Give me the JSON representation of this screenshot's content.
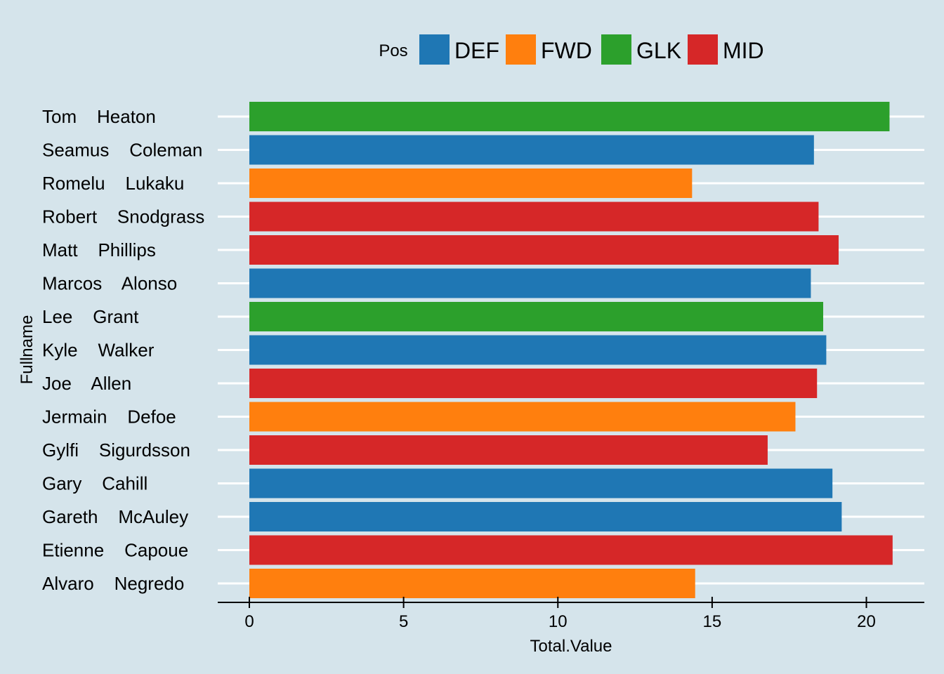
{
  "chart_data": {
    "type": "bar",
    "orientation": "horizontal",
    "xlabel": "Total.Value",
    "ylabel": "Fullname",
    "xlim": [
      -1,
      22
    ],
    "xticks": [
      "0",
      "5",
      "10",
      "15",
      "20"
    ],
    "grid": "horizontal major lines only, white",
    "legend": {
      "title": "Pos",
      "placement": "top",
      "entries": [
        {
          "label": "DEF",
          "color": "#1f77b4"
        },
        {
          "label": "FWD",
          "color": "#ff7f0e"
        },
        {
          "label": "GLK",
          "color": "#2ca02c"
        },
        {
          "label": "MID",
          "color": "#d62728"
        }
      ]
    },
    "bars": [
      {
        "name": "Tom    Heaton",
        "pos": "GLK",
        "value": 20.75
      },
      {
        "name": "Seamus    Coleman",
        "pos": "DEF",
        "value": 18.3
      },
      {
        "name": "Romelu    Lukaku",
        "pos": "FWD",
        "value": 14.35
      },
      {
        "name": "Robert    Snodgrass",
        "pos": "MID",
        "value": 18.45
      },
      {
        "name": "Matt    Phillips",
        "pos": "MID",
        "value": 19.1
      },
      {
        "name": "Marcos    Alonso",
        "pos": "DEF",
        "value": 18.2
      },
      {
        "name": "Lee    Grant",
        "pos": "GLK",
        "value": 18.6
      },
      {
        "name": "Kyle    Walker",
        "pos": "DEF",
        "value": 18.7
      },
      {
        "name": "Joe    Allen",
        "pos": "MID",
        "value": 18.4
      },
      {
        "name": "Jermain    Defoe",
        "pos": "FWD",
        "value": 17.7
      },
      {
        "name": "Gylfi    Sigurdsson",
        "pos": "MID",
        "value": 16.8
      },
      {
        "name": "Gary    Cahill",
        "pos": "DEF",
        "value": 18.9
      },
      {
        "name": "Gareth    McAuley",
        "pos": "DEF",
        "value": 19.2
      },
      {
        "name": "Etienne    Capoue",
        "pos": "MID",
        "value": 20.85
      },
      {
        "name": "Alvaro    Negredo",
        "pos": "FWD",
        "value": 14.45
      }
    ]
  }
}
